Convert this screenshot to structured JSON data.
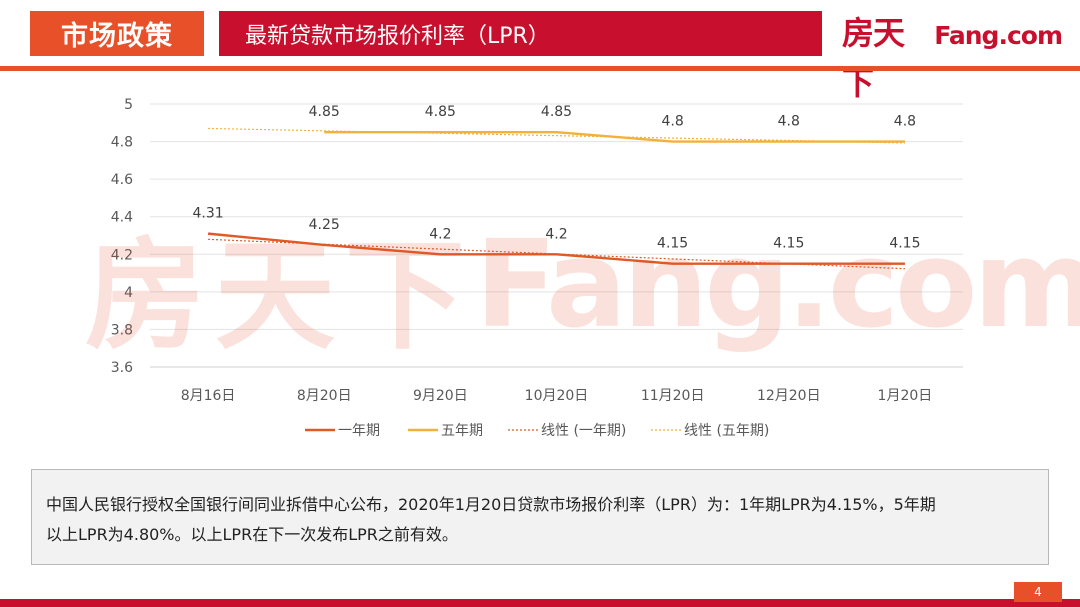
{
  "header": {
    "section": "市场政策",
    "title": "最新贷款市场报价利率（LPR）",
    "logo_cn": "房天下",
    "logo_en": "Fang.com"
  },
  "watermark": {
    "cn": "房天下",
    "en": "Fang.com"
  },
  "colors": {
    "accent_orange": "#e8502a",
    "brand_red": "#c8102e",
    "one_year": "#e05a25",
    "five_year": "#f2b13a"
  },
  "chart_data": {
    "type": "line",
    "title": "",
    "xlabel": "",
    "ylabel": "",
    "categories": [
      "8月16日",
      "8月20日",
      "9月20日",
      "10月20日",
      "11月20日",
      "12月20日",
      "1月20日"
    ],
    "ylim": [
      3.6,
      5
    ],
    "yticks": [
      3.6,
      3.8,
      4,
      4.2,
      4.4,
      4.6,
      4.8,
      5
    ],
    "grid": "horizontal",
    "legend_position": "bottom",
    "series": [
      {
        "name": "一年期",
        "values": [
          4.31,
          4.25,
          4.2,
          4.2,
          4.15,
          4.15,
          4.15
        ],
        "labels": [
          "4.31",
          "4.25",
          "4.2",
          "4.2",
          "4.15",
          "4.15",
          "4.15"
        ]
      },
      {
        "name": "五年期",
        "values": [
          null,
          4.85,
          4.85,
          4.85,
          4.8,
          4.8,
          4.8
        ],
        "labels": [
          "",
          "4.85",
          "4.85",
          "4.85",
          "4.8",
          "4.8",
          "4.8"
        ]
      }
    ],
    "trendlines": [
      {
        "name": "线性 (一年期)",
        "of": "一年期",
        "type": "linear"
      },
      {
        "name": "线性 (五年期)",
        "of": "五年期",
        "type": "linear"
      }
    ]
  },
  "note": {
    "line1": "中国人民银行授权全国银行间同业拆借中心公布，2020年1月20日贷款市场报价利率（LPR）为：1年期LPR为4.15%，5年期",
    "line2": "以上LPR为4.80%。以上LPR在下一次发布LPR之前有效。"
  },
  "page_number": "4"
}
